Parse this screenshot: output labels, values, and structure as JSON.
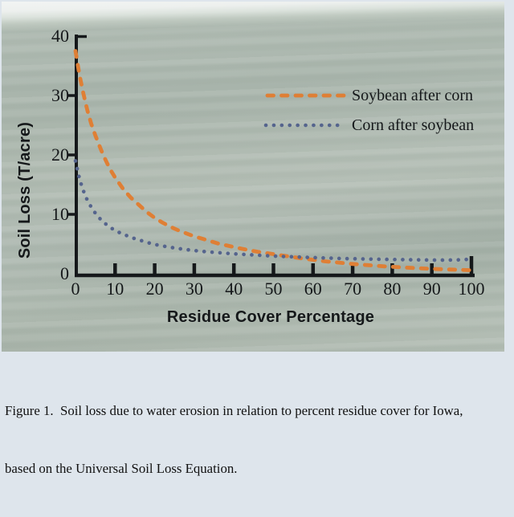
{
  "page": {
    "background_color": "#dee5ec"
  },
  "figure": {
    "caption_line1": "Figure 1.  Soil loss due to water erosion in relation to percent residue cover for Iowa,",
    "caption_line2": "based on the Universal Soil Loss Equation."
  },
  "colors": {
    "photo_green": "#a9b5ac",
    "photo_top_band": "#f2f4f3",
    "caption_background": "#dee5ec",
    "axis_and_text": "#15181a",
    "soybean_series": "#df7f35",
    "corn_series": "#55648d"
  },
  "chart_data": {
    "type": "line",
    "title": "",
    "xlabel": "Residue Cover Percentage",
    "ylabel": "Soil Loss (T/acre)",
    "xlim": [
      0,
      100
    ],
    "ylim": [
      0,
      40
    ],
    "x_ticks": [
      0,
      10,
      20,
      30,
      40,
      50,
      60,
      70,
      80,
      90,
      100
    ],
    "y_ticks": [
      0,
      10,
      20,
      30,
      40
    ],
    "grid": false,
    "legend_position": "upper-right-inside-plot",
    "axis_color": "#15181a",
    "series": [
      {
        "name": "Soybean after corn",
        "style": "dashed",
        "color": "#df7f35",
        "points": [
          [
            0,
            37.5
          ],
          [
            1,
            33.5
          ],
          [
            2,
            30.3
          ],
          [
            3,
            27.5
          ],
          [
            4,
            25.2
          ],
          [
            5,
            23.3
          ],
          [
            6,
            21.6
          ],
          [
            7,
            20
          ],
          [
            8,
            18.6
          ],
          [
            9,
            17.3
          ],
          [
            10,
            16.2
          ],
          [
            12,
            14.3
          ],
          [
            14,
            12.8
          ],
          [
            16,
            11.6
          ],
          [
            18,
            10.4
          ],
          [
            20,
            9.4
          ],
          [
            22,
            8.6
          ],
          [
            24,
            7.9
          ],
          [
            26,
            7.3
          ],
          [
            28,
            6.8
          ],
          [
            30,
            6.3
          ],
          [
            32,
            5.9
          ],
          [
            34,
            5.5
          ],
          [
            36,
            5.1
          ],
          [
            38,
            4.8
          ],
          [
            40,
            4.5
          ],
          [
            42,
            4.2
          ],
          [
            44,
            3.95
          ],
          [
            46,
            3.7
          ],
          [
            48,
            3.5
          ],
          [
            50,
            3.3
          ],
          [
            52,
            3.1
          ],
          [
            54,
            2.9
          ],
          [
            56,
            2.7
          ],
          [
            58,
            2.5
          ],
          [
            60,
            2.35
          ],
          [
            63,
            2.1
          ],
          [
            66,
            1.9
          ],
          [
            70,
            1.65
          ],
          [
            74,
            1.45
          ],
          [
            78,
            1.25
          ],
          [
            82,
            1.1
          ],
          [
            86,
            0.95
          ],
          [
            90,
            0.82
          ],
          [
            95,
            0.7
          ],
          [
            100,
            0.6
          ]
        ]
      },
      {
        "name": "Corn after soybean",
        "style": "dotted",
        "color": "#55648d",
        "points": [
          [
            0,
            19
          ],
          [
            0.4,
            17.8
          ],
          [
            0.8,
            16.6
          ],
          [
            1.2,
            15.6
          ],
          [
            1.8,
            14.3
          ],
          [
            2.5,
            13.1
          ],
          [
            3.2,
            12.1
          ],
          [
            4,
            11.2
          ],
          [
            5,
            10.2
          ],
          [
            6,
            9.4
          ],
          [
            7,
            8.7
          ],
          [
            8,
            8.2
          ],
          [
            9,
            7.7
          ],
          [
            10,
            7.3
          ],
          [
            11.5,
            6.8
          ],
          [
            13,
            6.4
          ],
          [
            15,
            5.9
          ],
          [
            17,
            5.5
          ],
          [
            19,
            5.1
          ],
          [
            21,
            4.8
          ],
          [
            24,
            4.45
          ],
          [
            27,
            4.15
          ],
          [
            30,
            3.9
          ],
          [
            33,
            3.7
          ],
          [
            36,
            3.55
          ],
          [
            40,
            3.35
          ],
          [
            44,
            3.2
          ],
          [
            48,
            3.05
          ],
          [
            52,
            2.92
          ],
          [
            56,
            2.82
          ],
          [
            60,
            2.72
          ],
          [
            64,
            2.63
          ],
          [
            68,
            2.55
          ],
          [
            72,
            2.5
          ],
          [
            76,
            2.45
          ],
          [
            80,
            2.4
          ],
          [
            84,
            2.36
          ],
          [
            88,
            2.32
          ],
          [
            92,
            2.3
          ],
          [
            96,
            2.32
          ],
          [
            100,
            2.45
          ]
        ]
      }
    ]
  }
}
